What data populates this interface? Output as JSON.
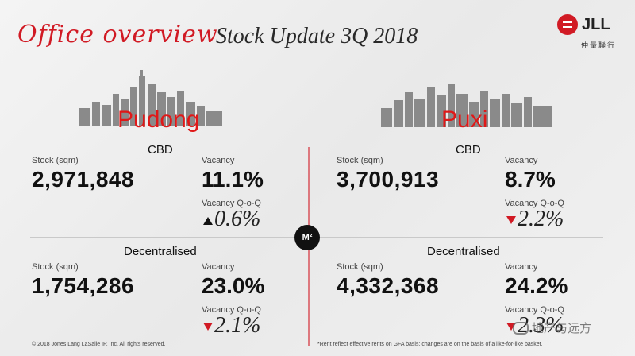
{
  "header": {
    "script_title": "Office overview",
    "main_title": "Stock Update 3Q 2018",
    "logo_text": "JLL",
    "logo_cn": "仲量聯行"
  },
  "colors": {
    "brand_red": "#d11a24",
    "arrow_down": "#d11a24",
    "arrow_up": "#111111"
  },
  "left": {
    "district": "Pudong",
    "cbd": {
      "heading": "CBD",
      "stock_label": "Stock (sqm)",
      "stock_value": "2,971,848",
      "vacancy_label": "Vacancy",
      "vacancy_value": "11.1%",
      "qoq_label": "Vacancy Q-o-Q",
      "qoq_value": "0.6%",
      "qoq_direction": "up"
    },
    "decentralised": {
      "heading": "Decentralised",
      "stock_label": "Stock (sqm)",
      "stock_value": "1,754,286",
      "vacancy_label": "Vacancy",
      "vacancy_value": "23.0%",
      "qoq_label": "Vacancy Q-o-Q",
      "qoq_value": "2.1%",
      "qoq_direction": "down"
    }
  },
  "right": {
    "district": "Puxi",
    "cbd": {
      "heading": "CBD",
      "stock_label": "Stock (sqm)",
      "stock_value": "3,700,913",
      "vacancy_label": "Vacancy",
      "vacancy_value": "8.7%",
      "qoq_label": "Vacancy Q-o-Q",
      "qoq_value": "2.2%",
      "qoq_direction": "down"
    },
    "decentralised": {
      "heading": "Decentralised",
      "stock_label": "Stock (sqm)",
      "stock_value": "4,332,368",
      "vacancy_label": "Vacancy",
      "vacancy_value": "24.2%",
      "qoq_label": "Vacancy Q-o-Q",
      "qoq_value": "2.3%",
      "qoq_direction": "down"
    }
  },
  "center_badge": "M²",
  "footer": {
    "copyright": "© 2018 Jones Lang LaSalle IP, Inc. All rights reserved.",
    "note": "*Rent reflect effective rents on GFA basis; changes are on the basis of a like-for-like basket."
  },
  "watermark": "地产与远方"
}
